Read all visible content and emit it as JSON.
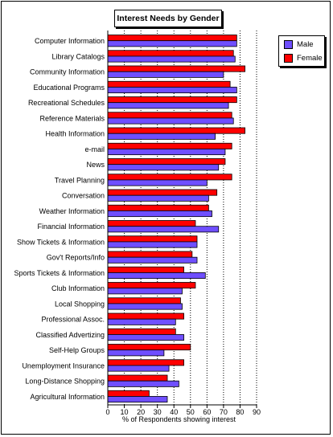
{
  "chart_data": {
    "type": "bar",
    "orientation": "horizontal",
    "title": "Interest Needs by Gender",
    "xlabel": "% of Respondents showing interest",
    "ylabel": "",
    "xlim": [
      0,
      90
    ],
    "xticks": [
      0,
      10,
      20,
      30,
      40,
      50,
      60,
      70,
      80,
      90
    ],
    "grid": "vertical dotted",
    "legend_position": "top-right",
    "categories": [
      "Computer Information",
      "Library Catalogs",
      "Community Information",
      "Educational Programs",
      "Recreational Schedules",
      "Reference Materials",
      "Health Information",
      "e-mail",
      "News",
      "Travel Planning",
      "Conversation",
      "Weather Information",
      "Financial Information",
      "Show Tickets & Information",
      "Gov't Reports/Info",
      "Sports Tickets & Information",
      "Club Information",
      "Local Shopping",
      "Professional Assoc.",
      "Classified Advertizing",
      "Self-Help Groups",
      "Unemployment Insurance",
      "Long-Distance Shopping",
      "Agricultural Information"
    ],
    "series": [
      {
        "name": "Female",
        "color": "#ff0000",
        "values": [
          78,
          76,
          83,
          74,
          78,
          75,
          83,
          75,
          71,
          75,
          66,
          61,
          53,
          54,
          51,
          46,
          53,
          44,
          46,
          41,
          50,
          46,
          36,
          25
        ]
      },
      {
        "name": "Male",
        "color": "#6f4fff",
        "values": [
          78,
          77,
          70,
          78,
          73,
          76,
          65,
          71,
          67,
          60,
          61,
          63,
          67,
          54,
          54,
          59,
          45,
          45,
          41,
          46,
          34,
          37,
          43,
          36
        ]
      }
    ]
  }
}
